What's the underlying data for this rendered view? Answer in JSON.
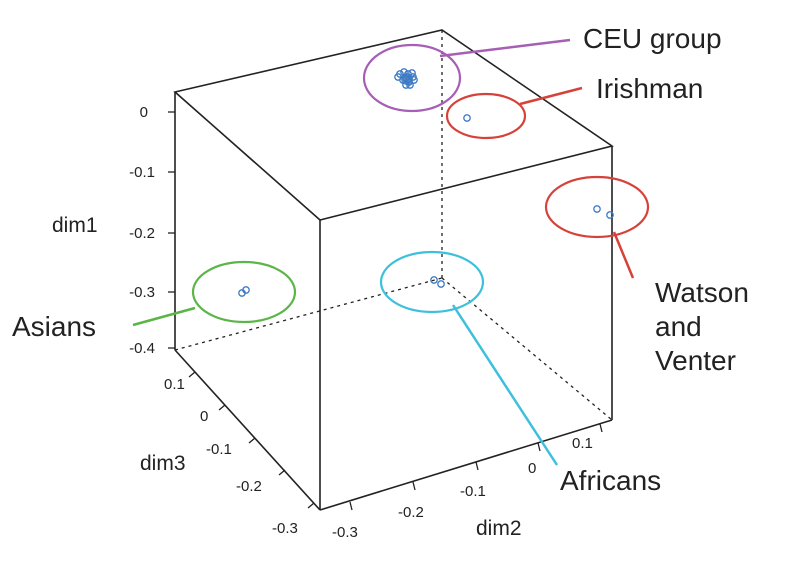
{
  "chart_data": {
    "type": "scatter3d",
    "axes": {
      "dim1": {
        "label": "dim1",
        "ticks": [
          "0",
          "-0.1",
          "-0.2",
          "-0.3",
          "-0.4"
        ]
      },
      "dim2": {
        "label": "dim2",
        "ticks": [
          "-0.3",
          "-0.2",
          "-0.1",
          "0",
          "0.1"
        ]
      },
      "dim3": {
        "label": "dim3",
        "ticks": [
          "-0.3",
          "-0.2",
          "-0.1",
          "0",
          "0.1"
        ]
      }
    },
    "groups": [
      {
        "name": "CEU group",
        "ring_color": "#a65fb5",
        "label_color": "#a65fb5"
      },
      {
        "name": "Irishman",
        "ring_color": "#d6423a",
        "label_color": "#d6423a"
      },
      {
        "name": "Watson and Venter",
        "label_lines": [
          "Watson",
          "and",
          "Venter"
        ],
        "ring_color": "#d6423a",
        "label_color": "#d6423a"
      },
      {
        "name": "Asians",
        "ring_color": "#5bb548",
        "label_color": "#5bb548"
      },
      {
        "name": "Africans",
        "ring_color": "#3cc0dc",
        "label_color": "#3cc0dc"
      }
    ],
    "point_color": "#3d7ac4",
    "grid": false
  }
}
